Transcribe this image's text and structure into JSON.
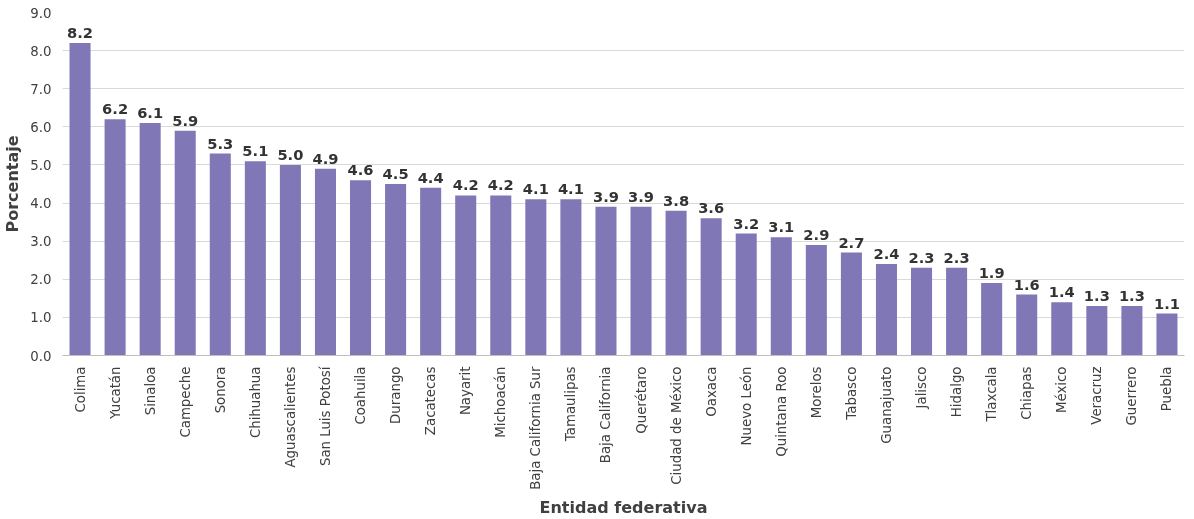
{
  "chart_data": {
    "type": "bar",
    "xlabel": "Entidad federativa",
    "ylabel": "Porcentaje",
    "categories": [
      "Colima",
      "Yucatán",
      "Sinaloa",
      "Campeche",
      "Sonora",
      "Chihuahua",
      "Aguascalientes",
      "San Luis Potosí",
      "Coahuila",
      "Durango",
      "Zacatecas",
      "Nayarit",
      "Michoacán",
      "Baja California Sur",
      "Tamaulipas",
      "Baja California",
      "Querétaro",
      "Ciudad de México",
      "Oaxaca",
      "Nuevo León",
      "Quintana Roo",
      "Morelos",
      "Tabasco",
      "Guanajuato",
      "Jalisco",
      "Hidalgo",
      "Tlaxcala",
      "Chiapas",
      "México",
      "Veracruz",
      "Guerrero",
      "Puebla"
    ],
    "values": [
      8.2,
      6.2,
      6.1,
      5.9,
      5.3,
      5.1,
      5.0,
      4.9,
      4.6,
      4.5,
      4.4,
      4.2,
      4.2,
      4.1,
      4.1,
      3.9,
      3.9,
      3.8,
      3.6,
      3.2,
      3.1,
      2.9,
      2.7,
      2.4,
      2.3,
      2.3,
      1.9,
      1.6,
      1.4,
      1.3,
      1.3,
      1.1
    ],
    "value_labels": [
      "8.2",
      "6.2",
      "6.1",
      "5.9",
      "5.3",
      "5.1",
      "5.0",
      "4.9",
      "4.6",
      "4.5",
      "4.4",
      "4.2",
      "4.2",
      "4.1",
      "4.1",
      "3.9",
      "3.9",
      "3.8",
      "3.6",
      "3.2",
      "3.1",
      "2.9",
      "2.7",
      "2.4",
      "2.3",
      "2.3",
      "1.9",
      "1.6",
      "1.4",
      "1.3",
      "1.3",
      "1.1"
    ],
    "color": "#7f77b6",
    "grid": "y",
    "ylim": [
      0,
      9
    ],
    "yticks": [
      {
        "value": 0,
        "label": "0.0"
      },
      {
        "value": 1,
        "label": "1.0"
      },
      {
        "value": 2,
        "label": "2.0"
      },
      {
        "value": 3,
        "label": "3.0"
      },
      {
        "value": 4,
        "label": "4.0"
      },
      {
        "value": 5,
        "label": "5.0"
      },
      {
        "value": 6,
        "label": "6.0"
      },
      {
        "value": 7,
        "label": "7.0"
      },
      {
        "value": 8,
        "label": "8.0"
      },
      {
        "value": 9,
        "label": "9.0"
      }
    ]
  }
}
